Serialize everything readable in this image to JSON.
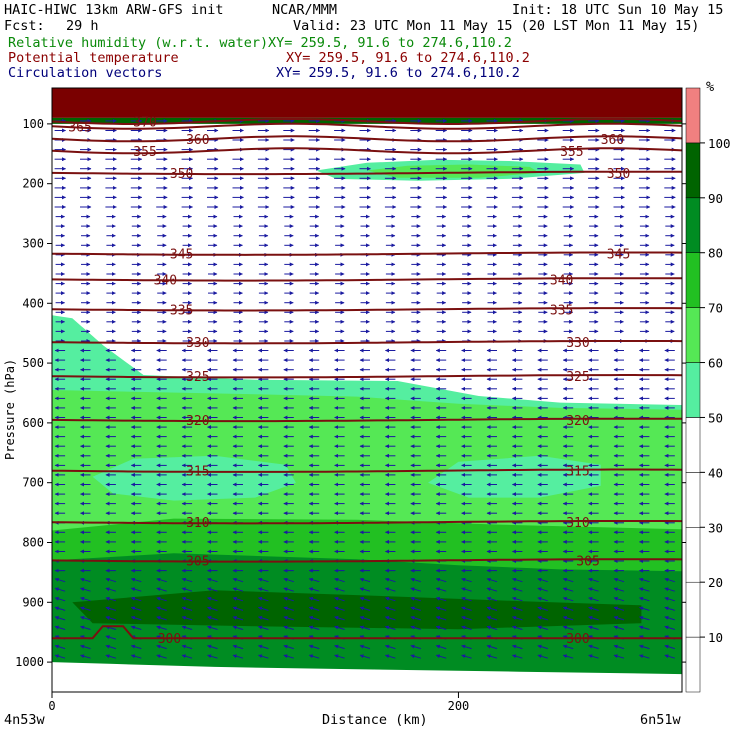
{
  "header": {
    "left_line1": "HAIC-HIWC 13km ARW-GFS init",
    "center_line1": "NCAR/MMM",
    "right_line1": "Init: 18 UTC Sun 10 May 15",
    "fcst_label": "Fcst:",
    "fcst_value": "29 h",
    "valid": "Valid: 23 UTC Mon 11 May 15 (20 LST Mon 11 May 15)",
    "rh_label": "Relative humidity (w.r.t. water)",
    "rh_xy": "XY= 259.5, 91.6 to 274.6,110.2",
    "theta_label": "Potential temperature",
    "theta_xy": "XY= 259.5, 91.6 to 274.6,110.2",
    "vec_label": "Circulation vectors",
    "vec_xy": "XY= 259.5, 91.6 to 274.6,110.2"
  },
  "chart_data": {
    "type": "heatmap",
    "xlabel": "Distance (km)",
    "ylabel": "Pressure (hPa)",
    "xlim": [
      0,
      310
    ],
    "ylim": [
      1050,
      40
    ],
    "x_ticks": [
      0,
      200
    ],
    "y_ticks": [
      100,
      200,
      300,
      400,
      500,
      600,
      700,
      800,
      900,
      1000
    ],
    "x_endpoint_labels": [
      "4n53w",
      "6n51w"
    ],
    "colorbar": {
      "unit": "%",
      "levels": [
        10,
        20,
        30,
        40,
        50,
        60,
        70,
        80,
        90,
        100
      ],
      "colors": [
        "#ffffff",
        "#ffffff",
        "#ffffff",
        "#ffffff",
        "#ffffff",
        "#55eea0",
        "#55e855",
        "#22c022",
        "#008c22",
        "#006400",
        "#f08080"
      ]
    },
    "theta_contours": [
      {
        "value": 300,
        "pressure": 960,
        "labels_x": [
          52,
          253
        ]
      },
      {
        "value": 305,
        "pressure": 830,
        "labels_x": [
          66,
          258
        ]
      },
      {
        "value": 310,
        "pressure": 766,
        "labels_x": [
          66,
          253
        ]
      },
      {
        "value": 315,
        "pressure": 680,
        "labels_x": [
          66,
          253
        ]
      },
      {
        "value": 320,
        "pressure": 595,
        "labels_x": [
          66,
          253
        ]
      },
      {
        "value": 325,
        "pressure": 522,
        "labels_x": [
          66,
          253
        ]
      },
      {
        "value": 330,
        "pressure": 465,
        "labels_x": [
          66,
          253
        ]
      },
      {
        "value": 335,
        "pressure": 410,
        "labels_x": [
          58,
          245
        ]
      },
      {
        "value": 340,
        "pressure": 360,
        "labels_x": [
          50,
          245
        ]
      },
      {
        "value": 345,
        "pressure": 317,
        "labels_x": [
          58,
          273
        ]
      },
      {
        "value": 350,
        "pressure": 182,
        "labels_x": [
          58,
          273
        ]
      },
      {
        "value": 355,
        "pressure": 145,
        "labels_x": [
          40,
          250
        ]
      },
      {
        "value": 360,
        "pressure": 125,
        "labels_x": [
          66,
          270
        ]
      },
      {
        "value": 365,
        "pressure": 104,
        "labels_x": [
          8
        ]
      },
      {
        "value": 370,
        "pressure": 96,
        "labels_x": [
          40
        ]
      }
    ]
  }
}
